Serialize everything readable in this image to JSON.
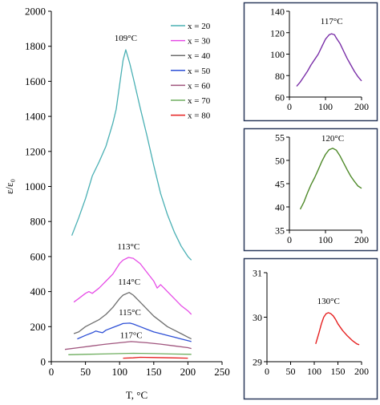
{
  "chart_data": [
    {
      "type": "line",
      "xlabel": "T, °C",
      "ylabel": "ε/ε₀",
      "xlim": [
        0,
        250
      ],
      "ylim": [
        0,
        2000
      ],
      "xticks": [
        "0",
        "50",
        "100",
        "150",
        "200",
        "250"
      ],
      "yticks": [
        "0",
        "200",
        "400",
        "600",
        "800",
        "1000",
        "1200",
        "1400",
        "1600",
        "1800",
        "2000"
      ],
      "grid": false,
      "legend_position": "top-right",
      "annotations": [
        "109°C",
        "113°C",
        "114°C",
        "115°C",
        "117°C"
      ],
      "series": [
        {
          "name": "x = 20",
          "color": "#4ab0b4",
          "x": [
            30,
            40,
            50,
            60,
            70,
            80,
            90,
            95,
            100,
            105,
            109,
            115,
            120,
            130,
            140,
            150,
            160,
            170,
            180,
            190,
            200,
            205
          ],
          "y": [
            720,
            820,
            930,
            1060,
            1140,
            1230,
            1360,
            1440,
            1580,
            1720,
            1780,
            1700,
            1620,
            1450,
            1290,
            1120,
            960,
            840,
            740,
            660,
            600,
            580
          ]
        },
        {
          "name": "x = 30",
          "color": "#e64ce6",
          "x": [
            33,
            40,
            50,
            55,
            60,
            70,
            80,
            90,
            100,
            105,
            113,
            120,
            130,
            140,
            150,
            155,
            160,
            165,
            170,
            180,
            190,
            200,
            205
          ],
          "y": [
            340,
            360,
            390,
            400,
            390,
            420,
            460,
            500,
            560,
            580,
            595,
            590,
            560,
            510,
            460,
            420,
            440,
            420,
            400,
            360,
            320,
            290,
            270
          ]
        },
        {
          "name": "x = 40",
          "color": "#6e6e6e",
          "x": [
            33,
            40,
            50,
            60,
            70,
            80,
            90,
            100,
            105,
            114,
            120,
            130,
            140,
            150,
            160,
            170,
            180,
            190,
            200,
            205
          ],
          "y": [
            160,
            170,
            200,
            220,
            240,
            270,
            310,
            360,
            380,
            395,
            380,
            340,
            300,
            260,
            230,
            200,
            180,
            160,
            140,
            130
          ]
        },
        {
          "name": "x = 50",
          "color": "#2d4fd6",
          "x": [
            38,
            50,
            60,
            65,
            70,
            75,
            80,
            90,
            100,
            105,
            115,
            120,
            130,
            140,
            150,
            160,
            170,
            180,
            190,
            200,
            205
          ],
          "y": [
            130,
            150,
            165,
            175,
            170,
            165,
            180,
            195,
            210,
            218,
            220,
            215,
            200,
            185,
            170,
            160,
            150,
            140,
            130,
            120,
            115
          ]
        },
        {
          "name": "x = 60",
          "color": "#a0557e",
          "x": [
            20,
            40,
            60,
            80,
            100,
            117,
            140,
            160,
            180,
            200,
            205
          ],
          "y": [
            70,
            80,
            90,
            100,
            108,
            115,
            108,
            100,
            90,
            80,
            75
          ]
        },
        {
          "name": "x = 70",
          "color": "#6fae5f",
          "x": [
            25,
            50,
            75,
            100,
            120,
            150,
            175,
            205
          ],
          "y": [
            40,
            42,
            44,
            46,
            48,
            46,
            44,
            42
          ]
        },
        {
          "name": "x = 80",
          "color": "#e62020",
          "x": [
            105,
            120,
            130,
            150,
            175,
            200
          ],
          "y": [
            20,
            22,
            25,
            24,
            22,
            20
          ]
        }
      ]
    },
    {
      "type": "line",
      "xlim": [
        0,
        200
      ],
      "ylim": [
        60,
        140
      ],
      "xticks": [
        "0",
        "100",
        "200"
      ],
      "yticks": [
        "60",
        "80",
        "100",
        "120",
        "140"
      ],
      "annotations": [
        "117°C"
      ],
      "series": [
        {
          "color": "#7a2fa8",
          "x": [
            20,
            30,
            40,
            50,
            60,
            70,
            80,
            90,
            100,
            110,
            117,
            125,
            130,
            140,
            150,
            160,
            170,
            180,
            190,
            200
          ],
          "y": [
            70,
            74,
            79,
            84,
            90,
            95,
            100,
            107,
            114,
            118,
            119,
            118,
            115,
            110,
            103,
            96,
            90,
            84,
            79,
            75
          ]
        }
      ]
    },
    {
      "type": "line",
      "xlim": [
        0,
        200
      ],
      "ylim": [
        35,
        55
      ],
      "xticks": [
        "0",
        "100",
        "200"
      ],
      "yticks": [
        "35",
        "40",
        "45",
        "50",
        "55"
      ],
      "annotations": [
        "120°C"
      ],
      "series": [
        {
          "color": "#4f8a2a",
          "x": [
            30,
            40,
            50,
            60,
            70,
            80,
            90,
            100,
            110,
            120,
            130,
            140,
            150,
            160,
            170,
            180,
            190,
            200
          ],
          "y": [
            39.5,
            41,
            43,
            44.8,
            46.3,
            48,
            49.8,
            51.3,
            52.3,
            52.6,
            52.2,
            51,
            49.5,
            48,
            46.6,
            45.5,
            44.5,
            44
          ]
        }
      ]
    },
    {
      "type": "line",
      "xlim": [
        0,
        200
      ],
      "ylim": [
        29,
        31
      ],
      "xticks": [
        "0",
        "50",
        "100",
        "150",
        "200"
      ],
      "yticks": [
        "29",
        "30",
        "31"
      ],
      "annotations": [
        "130°C"
      ],
      "series": [
        {
          "color": "#e62020",
          "x": [
            103,
            110,
            115,
            120,
            125,
            130,
            135,
            140,
            145,
            150,
            160,
            170,
            180,
            190,
            195
          ],
          "y": [
            29.4,
            29.65,
            29.85,
            30.0,
            30.08,
            30.1,
            30.08,
            30.03,
            29.95,
            29.85,
            29.7,
            29.58,
            29.48,
            29.4,
            29.38
          ]
        }
      ]
    }
  ]
}
